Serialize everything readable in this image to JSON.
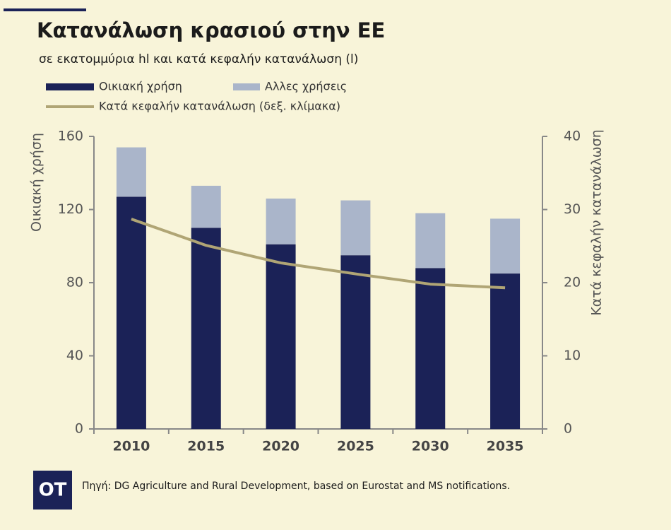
{
  "chart_data": {
    "type": "bar",
    "title": "Κατανάλωση κρασιού στην ΕΕ",
    "subtitle": "σε εκατομμύρια hl και κατά κεφαλήν κατανάλωση (l)",
    "y_label": "Οικιακή χρήση",
    "y2_label": "Κατά κεφαλήν κατανάλωση",
    "categories": [
      "2010",
      "2015",
      "2020",
      "2025",
      "2030",
      "2035"
    ],
    "series": [
      {
        "name": "Οικιακή χρήση",
        "color": "#1b2257",
        "values": [
          127,
          110,
          101,
          95,
          88,
          85
        ]
      },
      {
        "name": "Αλλες χρήσεις",
        "color": "#aab5ca",
        "values": [
          27,
          23,
          25,
          30,
          30,
          30
        ]
      },
      {
        "name": "Κατά κεφαλήν κατανάλωση (δεξ. κλίμακα)",
        "color": "#b0a575",
        "type": "line",
        "axis": "y2",
        "values": [
          28.7,
          25.1,
          22.7,
          21.2,
          19.8,
          19.3
        ]
      }
    ],
    "ylim": [
      0,
      160
    ],
    "yticks": [
      0,
      40,
      80,
      120,
      160
    ],
    "y2lim": [
      0,
      40
    ],
    "y2ticks": [
      0,
      10,
      20,
      30,
      40
    ],
    "grid": false,
    "source": "Πηγή: DG Agriculture and Rural Development, based on Eurostat and MS notifications.",
    "logo": "OT"
  }
}
